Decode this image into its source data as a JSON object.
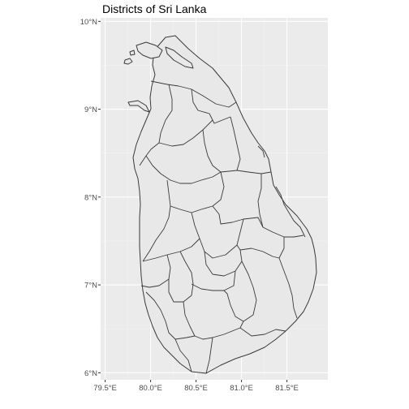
{
  "title": "Districts of Sri Lanka",
  "colors": {
    "panel_background": "#ebebeb",
    "grid": "#ffffff",
    "land_fill": "#e8e8e8",
    "boundary_stroke": "#3a3a3a",
    "tick_label": "#4d4d4d"
  },
  "chart_data": {
    "type": "map",
    "title": "Districts of Sri Lanka",
    "xlim": [
      79.45,
      81.95
    ],
    "ylim": [
      5.92,
      10.04
    ],
    "x_ticks": [
      {
        "value": 79.5,
        "label": "79.5°E"
      },
      {
        "value": 80.0,
        "label": "80.0°E"
      },
      {
        "value": 80.5,
        "label": "80.5°E"
      },
      {
        "value": 81.0,
        "label": "81.0°E"
      },
      {
        "value": 81.5,
        "label": "81.5°E"
      }
    ],
    "y_ticks": [
      {
        "value": 6,
        "label": "6°N"
      },
      {
        "value": 7,
        "label": "7°N"
      },
      {
        "value": 8,
        "label": "8°N"
      },
      {
        "value": 9,
        "label": "9°N"
      },
      {
        "value": 10,
        "label": "10°N"
      }
    ],
    "grid": true,
    "legend": "none"
  }
}
